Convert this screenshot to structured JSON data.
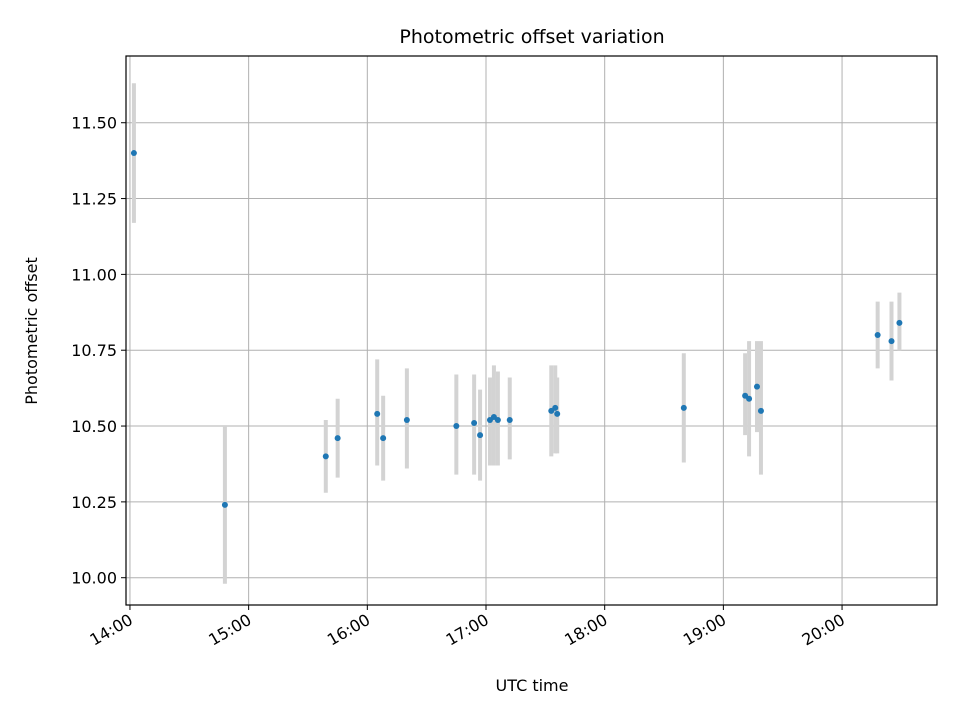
{
  "chart_data": {
    "type": "scatter",
    "title": "Photometric offset variation",
    "xlabel": "UTC time",
    "ylabel": "Photometric offset",
    "x_axis": "time",
    "xlim": [
      "13:58",
      "20:48"
    ],
    "ylim": [
      9.91,
      11.72
    ],
    "x_ticks": [
      "14:00",
      "15:00",
      "16:00",
      "17:00",
      "18:00",
      "19:00",
      "20:00"
    ],
    "y_ticks": [
      10.0,
      10.25,
      10.5,
      10.75,
      11.0,
      11.25,
      11.5
    ],
    "grid": true,
    "point_color": "#1f77b4",
    "errorbar_color": "#d3d3d3",
    "points": [
      {
        "t": "14:02",
        "y": 11.4,
        "lo": 11.17,
        "hi": 11.63
      },
      {
        "t": "14:48",
        "y": 10.24,
        "lo": 9.98,
        "hi": 10.5
      },
      {
        "t": "15:39",
        "y": 10.4,
        "lo": 10.28,
        "hi": 10.52
      },
      {
        "t": "15:45",
        "y": 10.46,
        "lo": 10.33,
        "hi": 10.59
      },
      {
        "t": "16:05",
        "y": 10.54,
        "lo": 10.37,
        "hi": 10.72
      },
      {
        "t": "16:08",
        "y": 10.46,
        "lo": 10.32,
        "hi": 10.6
      },
      {
        "t": "16:20",
        "y": 10.52,
        "lo": 10.36,
        "hi": 10.69
      },
      {
        "t": "16:45",
        "y": 10.5,
        "lo": 10.34,
        "hi": 10.67
      },
      {
        "t": "16:54",
        "y": 10.51,
        "lo": 10.34,
        "hi": 10.67
      },
      {
        "t": "16:57",
        "y": 10.47,
        "lo": 10.32,
        "hi": 10.62
      },
      {
        "t": "17:02",
        "y": 10.52,
        "lo": 10.37,
        "hi": 10.66
      },
      {
        "t": "17:04",
        "y": 10.53,
        "lo": 10.37,
        "hi": 10.7
      },
      {
        "t": "17:06",
        "y": 10.52,
        "lo": 10.37,
        "hi": 10.68
      },
      {
        "t": "17:12",
        "y": 10.52,
        "lo": 10.39,
        "hi": 10.66
      },
      {
        "t": "17:33",
        "y": 10.55,
        "lo": 10.4,
        "hi": 10.7
      },
      {
        "t": "17:35",
        "y": 10.56,
        "lo": 10.41,
        "hi": 10.7
      },
      {
        "t": "17:36",
        "y": 10.54,
        "lo": 10.41,
        "hi": 10.66
      },
      {
        "t": "18:40",
        "y": 10.56,
        "lo": 10.38,
        "hi": 10.74
      },
      {
        "t": "19:11",
        "y": 10.6,
        "lo": 10.47,
        "hi": 10.74
      },
      {
        "t": "19:13",
        "y": 10.59,
        "lo": 10.4,
        "hi": 10.78
      },
      {
        "t": "19:17",
        "y": 10.63,
        "lo": 10.48,
        "hi": 10.78
      },
      {
        "t": "19:19",
        "y": 10.55,
        "lo": 10.34,
        "hi": 10.78
      },
      {
        "t": "20:18",
        "y": 10.8,
        "lo": 10.69,
        "hi": 10.91
      },
      {
        "t": "20:25",
        "y": 10.78,
        "lo": 10.65,
        "hi": 10.91
      },
      {
        "t": "20:29",
        "y": 10.84,
        "lo": 10.75,
        "hi": 10.94
      }
    ]
  }
}
